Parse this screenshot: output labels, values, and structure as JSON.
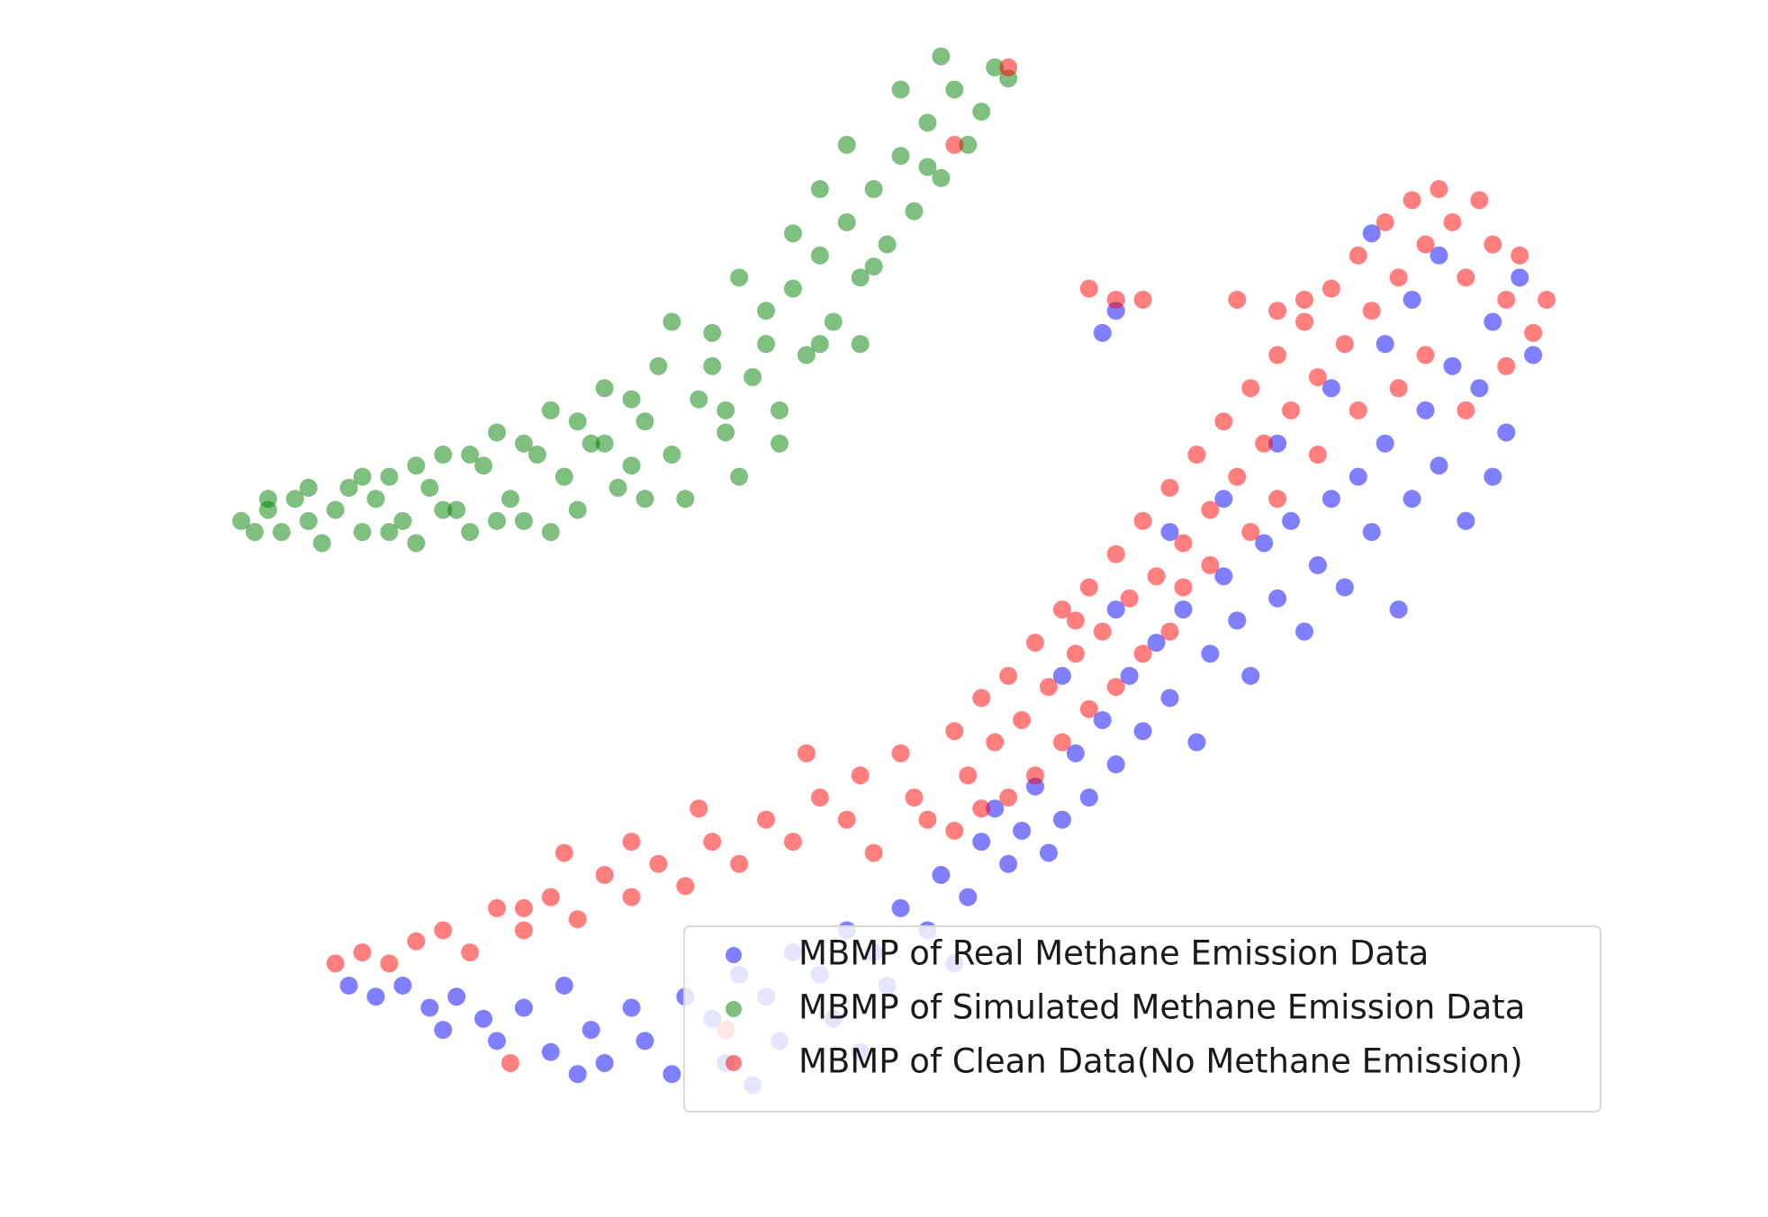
{
  "chart_data": {
    "type": "scatter",
    "xlim": [
      0,
      100
    ],
    "ylim": [
      0,
      100
    ],
    "axes_visible": false,
    "legend": "lower right",
    "alpha": 0.5,
    "series": [
      {
        "name": "MBMP of Real Methane Emission Data",
        "color": "#0000ff",
        "x": [
          9,
          11,
          13,
          15,
          17,
          19,
          20,
          22,
          24,
          25,
          27,
          28,
          30,
          31,
          33,
          34,
          36,
          37,
          38,
          40,
          41,
          42,
          44,
          45,
          46,
          48,
          49,
          50,
          52,
          53,
          54,
          55,
          56,
          57,
          58,
          59,
          60,
          61,
          62,
          63,
          64,
          65,
          66,
          67,
          68,
          69,
          70,
          71,
          72,
          73,
          74,
          75,
          76,
          77,
          78,
          79,
          80,
          81,
          82,
          83,
          84,
          85,
          86,
          87,
          88,
          89,
          90,
          91,
          92,
          93,
          94,
          95,
          96,
          97,
          90,
          86,
          82,
          78,
          74,
          70,
          66,
          62,
          85,
          88,
          94,
          47,
          39,
          26,
          16,
          66,
          65
        ],
        "values": [
          14,
          13,
          14,
          12,
          13,
          11,
          9,
          12,
          8,
          14,
          10,
          7,
          12,
          9,
          6,
          13,
          11,
          7,
          15,
          13,
          9,
          17,
          15,
          11,
          19,
          17,
          14,
          21,
          19,
          24,
          16,
          22,
          27,
          30,
          25,
          28,
          32,
          26,
          29,
          35,
          31,
          38,
          34,
          42,
          37,
          45,
          40,
          48,
          36,
          44,
          51,
          47,
          42,
          54,
          49,
          56,
          46,
          52,
          58,
          50,
          60,
          55,
          63,
          48,
          58,
          66,
          61,
          70,
          56,
          68,
          74,
          64,
          78,
          71,
          80,
          72,
          68,
          63,
          58,
          55,
          48,
          42,
          82,
          76,
          60,
          8,
          5,
          6,
          10,
          75,
          73
        ]
      },
      {
        "name": "MBMP of Simulated Methane Emission Data",
        "color": "#008000",
        "x": [
          1,
          2,
          3,
          4,
          5,
          6,
          7,
          8,
          9,
          10,
          11,
          12,
          13,
          14,
          15,
          16,
          17,
          18,
          19,
          20,
          21,
          22,
          23,
          24,
          25,
          26,
          27,
          28,
          29,
          30,
          31,
          32,
          33,
          34,
          35,
          36,
          37,
          38,
          39,
          40,
          41,
          42,
          43,
          44,
          45,
          46,
          47,
          48,
          49,
          50,
          51,
          52,
          53,
          54,
          55,
          56,
          57,
          58,
          46,
          44,
          50,
          53,
          42,
          38,
          36,
          33,
          30,
          26,
          22,
          18,
          14,
          10,
          6,
          3,
          48,
          52,
          40,
          28,
          24,
          20,
          16,
          12,
          44,
          37,
          31,
          41,
          47
        ],
        "values": [
          56,
          55,
          57,
          55,
          58,
          56,
          54,
          57,
          59,
          55,
          58,
          60,
          56,
          54,
          59,
          62,
          57,
          55,
          61,
          64,
          58,
          56,
          62,
          66,
          60,
          57,
          63,
          68,
          59,
          61,
          65,
          70,
          62,
          58,
          67,
          73,
          64,
          60,
          69,
          75,
          66,
          77,
          71,
          80,
          74,
          83,
          78,
          86,
          81,
          89,
          84,
          92,
          87,
          95,
          90,
          93,
          97,
          96,
          90,
          86,
          95,
          98,
          82,
          78,
          70,
          74,
          67,
          65,
          63,
          62,
          61,
          60,
          59,
          58,
          79,
          88,
          72,
          63,
          55,
          56,
          57,
          55,
          72,
          66,
          58,
          63,
          72
        ]
      },
      {
        "name": "MBMP of Clean Data(No Methane Emission)",
        "color": "#ff0000",
        "x": [
          8,
          10,
          12,
          14,
          16,
          18,
          20,
          22,
          24,
          26,
          28,
          30,
          32,
          34,
          36,
          38,
          40,
          42,
          44,
          46,
          47,
          48,
          50,
          51,
          52,
          54,
          55,
          56,
          57,
          58,
          59,
          60,
          61,
          62,
          63,
          64,
          65,
          66,
          67,
          68,
          69,
          70,
          71,
          72,
          73,
          74,
          75,
          76,
          77,
          78,
          79,
          80,
          81,
          82,
          83,
          84,
          85,
          86,
          87,
          88,
          89,
          90,
          91,
          92,
          93,
          94,
          95,
          96,
          97,
          98,
          95,
          92,
          89,
          87,
          84,
          81,
          78,
          76,
          73,
          71,
          70,
          68,
          66,
          64,
          62,
          60,
          58,
          56,
          54,
          30,
          35,
          43,
          25,
          22,
          37,
          21,
          54,
          58,
          66,
          68,
          64,
          75,
          78,
          80,
          63
        ],
        "values": [
          16,
          17,
          16,
          18,
          19,
          17,
          21,
          19,
          22,
          20,
          24,
          22,
          25,
          23,
          27,
          25,
          29,
          27,
          31,
          29,
          33,
          26,
          35,
          31,
          29,
          37,
          33,
          40,
          36,
          42,
          38,
          45,
          41,
          48,
          44,
          50,
          46,
          53,
          49,
          56,
          51,
          59,
          54,
          62,
          57,
          65,
          60,
          68,
          63,
          71,
          66,
          74,
          69,
          77,
          72,
          80,
          75,
          83,
          78,
          85,
          81,
          86,
          83,
          78,
          85,
          81,
          76,
          80,
          73,
          76,
          70,
          66,
          71,
          68,
          66,
          62,
          58,
          55,
          52,
          50,
          46,
          44,
          41,
          39,
          36,
          33,
          31,
          30,
          28,
          27,
          30,
          35,
          26,
          21,
          10,
          7,
          90,
          97,
          76,
          76,
          77,
          76,
          75,
          76,
          47
        ]
      }
    ]
  }
}
